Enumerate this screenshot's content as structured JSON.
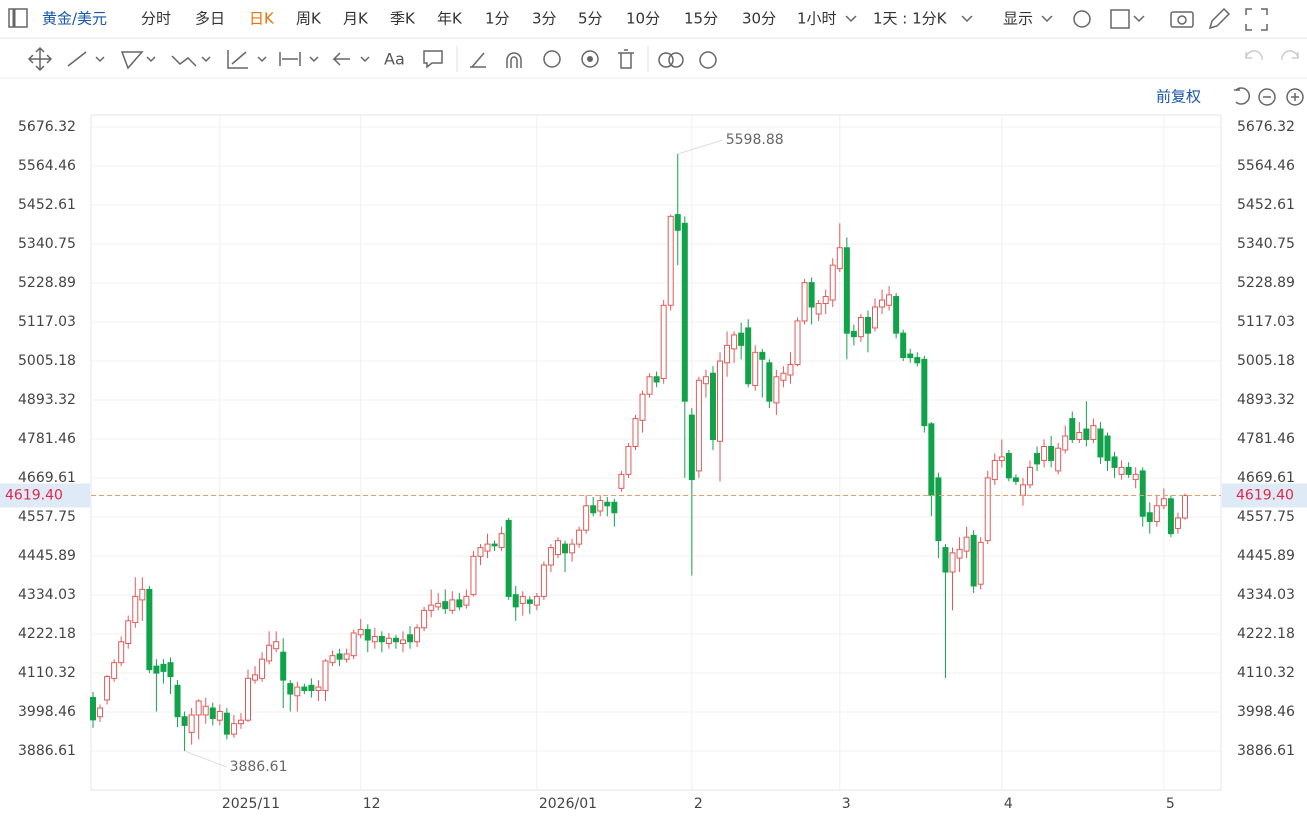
{
  "toolbar": {
    "symbol": "黄金/美元",
    "periods": [
      "分时",
      "多日",
      "日K",
      "周K",
      "月K",
      "季K",
      "年K",
      "1分",
      "3分",
      "5分",
      "10分",
      "15分",
      "30分",
      "1小时",
      "1天 : 1分K",
      "显示"
    ],
    "active_period": 2,
    "text_tool": "Aa",
    "adjust": "前复权"
  },
  "chart_data": {
    "type": "candlestick",
    "categories": [
      null,
      null,
      null,
      null,
      null,
      null,
      null,
      null,
      null,
      null,
      null,
      null,
      null,
      null,
      null,
      null,
      null,
      null,
      "2025/11",
      null,
      null,
      null,
      null,
      null,
      null,
      null,
      null,
      null,
      null,
      null,
      null,
      null,
      null,
      null,
      null,
      null,
      null,
      null,
      "12",
      null,
      null,
      null,
      null,
      null,
      null,
      null,
      null,
      null,
      null,
      null,
      null,
      null,
      null,
      null,
      null,
      null,
      null,
      null,
      null,
      null,
      null,
      null,
      null,
      "2026/01",
      null,
      null,
      null,
      null,
      null,
      null,
      null,
      null,
      null,
      null,
      null,
      null,
      null,
      null,
      null,
      null,
      null,
      null,
      null,
      null,
      null,
      "2",
      null,
      null,
      null,
      null,
      null,
      null,
      null,
      null,
      null,
      null,
      null,
      null,
      null,
      null,
      null,
      null,
      null,
      null,
      null,
      null,
      "3",
      null,
      null,
      null,
      null,
      null,
      null,
      null,
      null,
      null,
      null,
      null,
      null,
      null,
      null,
      null,
      null,
      null,
      null,
      null,
      null,
      null,
      null,
      "4",
      null,
      null,
      null,
      null,
      null,
      null,
      null,
      null,
      null,
      null,
      null,
      null,
      null,
      null,
      null,
      null,
      null,
      null,
      null,
      null,
      null,
      null,
      "5",
      null,
      null,
      null
    ],
    "open": [
      4040,
      3985,
      4033,
      4095,
      4140,
      4195,
      4255,
      4320,
      4350,
      4130,
      4135,
      4140,
      4075,
      3985,
      3940,
      3990,
      3990,
      4010,
      3975,
      3995,
      3935,
      3965,
      3975,
      4090,
      4095,
      4145,
      4180,
      4170,
      4080,
      4045,
      4070,
      4075,
      4060,
      4060,
      4140,
      4165,
      4150,
      4160,
      4220,
      4235,
      4200,
      4215,
      4195,
      4210,
      4195,
      4220,
      4200,
      4240,
      4290,
      4300,
      4315,
      4290,
      4320,
      4305,
      4335,
      4445,
      4460,
      4480,
      4470,
      4548,
      4335,
      4310,
      4320,
      4305,
      4330,
      4420,
      4450,
      4480,
      4455,
      4480,
      4520,
      4590,
      4575,
      4600,
      4600,
      4640,
      4680,
      4760,
      4835,
      4910,
      4960,
      4955,
      5165,
      5425,
      5400,
      4850,
      4690,
      4940,
      4970,
      4775,
      5000,
      5040,
      5085,
      5100,
      4935,
      5030,
      5000,
      4885,
      4950,
      4965,
      4995,
      5120,
      5230,
      5140,
      5170,
      5180,
      5270,
      5330,
      5090,
      5075,
      5130,
      5100,
      5160,
      5165,
      5190,
      5085,
      5025,
      5015,
      5010,
      4825,
      4670,
      4470,
      4400,
      4440,
      4460,
      4505,
      4365,
      4490,
      4665,
      4720,
      4740,
      4670,
      4620,
      4650,
      4740,
      4720,
      4760,
      4690,
      4750,
      4840,
      4780,
      4810,
      4780,
      4810,
      4790,
      4730,
      4680,
      4700,
      4665,
      4690,
      4570,
      4545,
      4590,
      4610,
      4525,
      4555
    ],
    "high": [
      4056,
      4020,
      4105,
      4150,
      4215,
      4275,
      4385,
      4385,
      4360,
      4150,
      4150,
      4155,
      4090,
      4000,
      4010,
      4035,
      4040,
      4025,
      4020,
      4010,
      3990,
      3995,
      4120,
      4130,
      4170,
      4230,
      4230,
      4210,
      4090,
      4085,
      4080,
      4095,
      4090,
      4150,
      4175,
      4180,
      4180,
      4235,
      4265,
      4250,
      4240,
      4230,
      4225,
      4220,
      4230,
      4245,
      4250,
      4300,
      4350,
      4340,
      4350,
      4345,
      4340,
      4350,
      4460,
      4480,
      4510,
      4490,
      4530,
      4555,
      4360,
      4345,
      4330,
      4340,
      4430,
      4480,
      4500,
      4490,
      4495,
      4530,
      4620,
      4615,
      4620,
      4615,
      4610,
      4690,
      4770,
      4850,
      4920,
      4970,
      4975,
      5180,
      5425,
      5598.88,
      5420,
      4870,
      4960,
      4980,
      4990,
      5030,
      5090,
      5090,
      5115,
      5125,
      5050,
      5040,
      5010,
      4980,
      4990,
      5030,
      5130,
      5240,
      5245,
      5180,
      5210,
      5300,
      5400,
      5360,
      5110,
      5140,
      5150,
      5185,
      5210,
      5220,
      5200,
      5095,
      5040,
      5030,
      5020,
      4830,
      4685,
      4480,
      4470,
      4500,
      4530,
      4520,
      4500,
      4690,
      4740,
      4780,
      4750,
      4680,
      4670,
      4720,
      4760,
      4780,
      4790,
      4770,
      4820,
      4860,
      4830,
      4890,
      4840,
      4830,
      4800,
      4745,
      4720,
      4715,
      4700,
      4700,
      4600,
      4620,
      4640,
      4620,
      4570,
      4625
    ],
    "low": [
      3953,
      3970,
      4020,
      4085,
      4130,
      4180,
      4240,
      4260,
      4110,
      4000,
      4080,
      4050,
      3955,
      3886.61,
      3905,
      3920,
      3965,
      3960,
      3960,
      3920,
      3925,
      3950,
      3970,
      4080,
      4085,
      4135,
      4170,
      4010,
      4000,
      4000,
      4050,
      4040,
      4030,
      4030,
      4130,
      4130,
      4140,
      4150,
      4210,
      4170,
      4180,
      4170,
      4180,
      4180,
      4170,
      4180,
      4185,
      4230,
      4270,
      4290,
      4280,
      4280,
      4290,
      4295,
      4330,
      4420,
      4440,
      4460,
      4460,
      4320,
      4260,
      4275,
      4280,
      4290,
      4320,
      4400,
      4440,
      4400,
      4430,
      4470,
      4510,
      4560,
      4560,
      4560,
      4530,
      4630,
      4670,
      4750,
      4800,
      4900,
      4930,
      4940,
      5150,
      5280,
      4670,
      4390,
      4670,
      4900,
      4750,
      4660,
      4960,
      5000,
      5010,
      4930,
      4920,
      4900,
      4870,
      4850,
      4930,
      4940,
      4990,
      5110,
      5110,
      5120,
      5140,
      5160,
      5260,
      5010,
      5050,
      5060,
      5030,
      5090,
      5140,
      5150,
      5070,
      5005,
      5000,
      4990,
      4800,
      4560,
      4440,
      4096,
      4290,
      4400,
      4440,
      4340,
      4350,
      4480,
      4650,
      4700,
      4660,
      4650,
      4590,
      4640,
      4690,
      4700,
      4700,
      4680,
      4740,
      4770,
      4770,
      4760,
      4770,
      4710,
      4690,
      4670,
      4665,
      4670,
      4640,
      4530,
      4510,
      4530,
      4580,
      4500,
      4510,
      4550
    ],
    "close": [
      3976,
      4010,
      4100,
      4140,
      4200,
      4260,
      4330,
      4350,
      4120,
      4110,
      4115,
      4100,
      3985,
      3960,
      3990,
      4030,
      4015,
      3980,
      4000,
      3935,
      3965,
      3975,
      4095,
      4105,
      4150,
      4190,
      4200,
      4090,
      4050,
      4070,
      4060,
      4060,
      4070,
      4145,
      4160,
      4150,
      4165,
      4225,
      4235,
      4205,
      4215,
      4200,
      4210,
      4200,
      4205,
      4200,
      4240,
      4290,
      4305,
      4310,
      4295,
      4320,
      4300,
      4330,
      4445,
      4470,
      4480,
      4475,
      4510,
      4330,
      4300,
      4330,
      4310,
      4330,
      4420,
      4470,
      4490,
      4455,
      4480,
      4520,
      4590,
      4570,
      4605,
      4590,
      4570,
      4680,
      4760,
      4840,
      4910,
      4960,
      4945,
      5165,
      5420,
      5380,
      4890,
      4665,
      4950,
      4960,
      4780,
      5005,
      5050,
      5080,
      5050,
      4940,
      5030,
      5010,
      4890,
      4960,
      4970,
      4995,
      5120,
      5230,
      5160,
      5170,
      5190,
      5280,
      5330,
      5085,
      5075,
      5130,
      5085,
      5160,
      5180,
      5195,
      5085,
      5015,
      5015,
      5000,
      4820,
      4620,
      4490,
      4400,
      4455,
      4465,
      4500,
      4360,
      4485,
      4670,
      4720,
      4730,
      4670,
      4660,
      4650,
      4700,
      4710,
      4760,
      4720,
      4755,
      4790,
      4780,
      4800,
      4780,
      4820,
      4730,
      4720,
      4700,
      4700,
      4680,
      4680,
      4560,
      4545,
      4590,
      4610,
      4510,
      4555,
      4619.4
    ],
    "up_color": "#e05a5a",
    "down_color": "#11a34a",
    "ylim": [
      3774.8,
      5710.7
    ],
    "yticks": [
      3886.61,
      3998.46,
      4110.32,
      4222.18,
      4334.03,
      4445.89,
      4557.75,
      4669.61,
      4781.46,
      4893.32,
      5005.18,
      5117.03,
      5228.89,
      5340.75,
      5452.61,
      5564.46,
      5676.32
    ],
    "grid": true,
    "max_index": 83,
    "min_index": 13,
    "last_price": {
      "value": 4619.4,
      "label": "4619.40"
    }
  }
}
